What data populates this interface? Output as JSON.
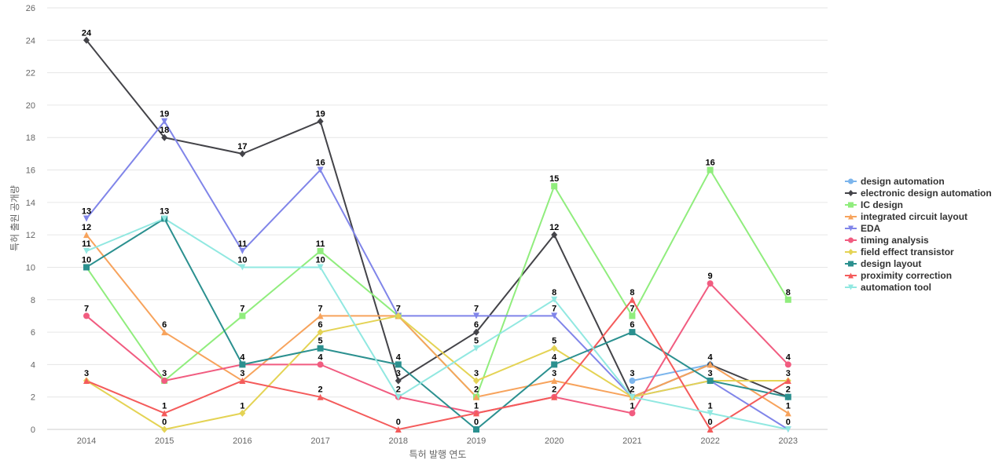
{
  "chart_data": {
    "type": "line",
    "title": "",
    "xlabel": "특허 발행 연도",
    "ylabel": "특허 출원 공개량",
    "x": [
      "2014",
      "2015",
      "2016",
      "2017",
      "2018",
      "2019",
      "2020",
      "2021",
      "2022",
      "2023"
    ],
    "ylim": [
      0,
      26
    ],
    "yticks": [
      0,
      2,
      4,
      6,
      8,
      10,
      12,
      14,
      16,
      18,
      20,
      22,
      24,
      26
    ],
    "grid": true,
    "legend_position": "right",
    "series": [
      {
        "name": "design automation",
        "color": "#7cb5ec",
        "marker": "circle",
        "values": [
          null,
          null,
          null,
          null,
          null,
          null,
          null,
          3,
          4,
          null
        ]
      },
      {
        "name": "electronic design automation",
        "color": "#434348",
        "marker": "diamond",
        "values": [
          24,
          18,
          17,
          19,
          3,
          6,
          12,
          2,
          4,
          2
        ]
      },
      {
        "name": "IC design",
        "color": "#90ed7d",
        "marker": "square",
        "values": [
          10,
          3,
          7,
          11,
          7,
          2,
          15,
          7,
          16,
          8
        ]
      },
      {
        "name": "integrated circuit layout",
        "color": "#f7a35c",
        "marker": "triangle",
        "values": [
          12,
          6,
          3,
          7,
          7,
          2,
          3,
          2,
          4,
          1
        ]
      },
      {
        "name": "EDA",
        "color": "#8085e9",
        "marker": "triangle-down",
        "values": [
          13,
          19,
          11,
          16,
          7,
          7,
          7,
          2,
          3,
          0
        ]
      },
      {
        "name": "timing analysis",
        "color": "#f15c80",
        "marker": "circle",
        "values": [
          7,
          3,
          4,
          4,
          2,
          1,
          2,
          1,
          9,
          4
        ]
      },
      {
        "name": "field effect transistor",
        "color": "#e4d354",
        "marker": "diamond",
        "values": [
          3,
          0,
          1,
          6,
          7,
          3,
          5,
          2,
          3,
          3
        ]
      },
      {
        "name": "design layout",
        "color": "#2b908f",
        "marker": "square",
        "values": [
          10,
          13,
          4,
          5,
          4,
          0,
          4,
          6,
          3,
          2
        ]
      },
      {
        "name": "proximity correction",
        "color": "#f45b5b",
        "marker": "triangle",
        "values": [
          3,
          1,
          3,
          2,
          0,
          1,
          2,
          8,
          0,
          3
        ]
      },
      {
        "name": "automation tool",
        "color": "#91e8e1",
        "marker": "triangle-down",
        "values": [
          11,
          13,
          10,
          10,
          2,
          5,
          8,
          2,
          1,
          0
        ]
      }
    ],
    "data_labels": [
      {
        "x": "2014",
        "y": 24,
        "text": "24"
      },
      {
        "x": "2014",
        "y": 13,
        "text": "13"
      },
      {
        "x": "2014",
        "y": 12,
        "text": "12"
      },
      {
        "x": "2014",
        "y": 11,
        "text": "11"
      },
      {
        "x": "2014",
        "y": 10,
        "text": "10"
      },
      {
        "x": "2014",
        "y": 7,
        "text": "7"
      },
      {
        "x": "2014",
        "y": 3,
        "text": "3"
      },
      {
        "x": "2015",
        "y": 19,
        "text": "19"
      },
      {
        "x": "2015",
        "y": 18,
        "text": "18"
      },
      {
        "x": "2015",
        "y": 13,
        "text": "13"
      },
      {
        "x": "2015",
        "y": 6,
        "text": "6"
      },
      {
        "x": "2015",
        "y": 3,
        "text": "3"
      },
      {
        "x": "2015",
        "y": 1,
        "text": "1"
      },
      {
        "x": "2015",
        "y": 0,
        "text": "0"
      },
      {
        "x": "2016",
        "y": 17,
        "text": "17"
      },
      {
        "x": "2016",
        "y": 11,
        "text": "11"
      },
      {
        "x": "2016",
        "y": 10,
        "text": "10"
      },
      {
        "x": "2016",
        "y": 7,
        "text": "7"
      },
      {
        "x": "2016",
        "y": 4,
        "text": "4"
      },
      {
        "x": "2016",
        "y": 3,
        "text": "3"
      },
      {
        "x": "2016",
        "y": 1,
        "text": "1"
      },
      {
        "x": "2017",
        "y": 19,
        "text": "19"
      },
      {
        "x": "2017",
        "y": 16,
        "text": "16"
      },
      {
        "x": "2017",
        "y": 11,
        "text": "11"
      },
      {
        "x": "2017",
        "y": 10,
        "text": "10"
      },
      {
        "x": "2017",
        "y": 7,
        "text": "7"
      },
      {
        "x": "2017",
        "y": 6,
        "text": "6"
      },
      {
        "x": "2017",
        "y": 5,
        "text": "5"
      },
      {
        "x": "2017",
        "y": 4,
        "text": "4"
      },
      {
        "x": "2017",
        "y": 2,
        "text": "2"
      },
      {
        "x": "2018",
        "y": 7,
        "text": "7"
      },
      {
        "x": "2018",
        "y": 4,
        "text": "4"
      },
      {
        "x": "2018",
        "y": 3,
        "text": "3"
      },
      {
        "x": "2018",
        "y": 2,
        "text": "2"
      },
      {
        "x": "2018",
        "y": 0,
        "text": "0"
      },
      {
        "x": "2019",
        "y": 7,
        "text": "7"
      },
      {
        "x": "2019",
        "y": 6,
        "text": "6"
      },
      {
        "x": "2019",
        "y": 5,
        "text": "5"
      },
      {
        "x": "2019",
        "y": 3,
        "text": "3"
      },
      {
        "x": "2019",
        "y": 2,
        "text": "2"
      },
      {
        "x": "2019",
        "y": 1,
        "text": "1"
      },
      {
        "x": "2019",
        "y": 0,
        "text": "0"
      },
      {
        "x": "2020",
        "y": 15,
        "text": "15"
      },
      {
        "x": "2020",
        "y": 12,
        "text": "12"
      },
      {
        "x": "2020",
        "y": 8,
        "text": "8"
      },
      {
        "x": "2020",
        "y": 7,
        "text": "7"
      },
      {
        "x": "2020",
        "y": 5,
        "text": "5"
      },
      {
        "x": "2020",
        "y": 4,
        "text": "4"
      },
      {
        "x": "2020",
        "y": 3,
        "text": "3"
      },
      {
        "x": "2020",
        "y": 2,
        "text": "2"
      },
      {
        "x": "2021",
        "y": 8,
        "text": "8"
      },
      {
        "x": "2021",
        "y": 7,
        "text": "7"
      },
      {
        "x": "2021",
        "y": 6,
        "text": "6"
      },
      {
        "x": "2021",
        "y": 3,
        "text": "3"
      },
      {
        "x": "2021",
        "y": 2,
        "text": "2"
      },
      {
        "x": "2021",
        "y": 1,
        "text": "1"
      },
      {
        "x": "2022",
        "y": 16,
        "text": "16"
      },
      {
        "x": "2022",
        "y": 9,
        "text": "9"
      },
      {
        "x": "2022",
        "y": 4,
        "text": "4"
      },
      {
        "x": "2022",
        "y": 3,
        "text": "3"
      },
      {
        "x": "2022",
        "y": 1,
        "text": "1"
      },
      {
        "x": "2022",
        "y": 0,
        "text": "0"
      },
      {
        "x": "2023",
        "y": 8,
        "text": "8"
      },
      {
        "x": "2023",
        "y": 4,
        "text": "4"
      },
      {
        "x": "2023",
        "y": 3,
        "text": "3"
      },
      {
        "x": "2023",
        "y": 2,
        "text": "2"
      },
      {
        "x": "2023",
        "y": 1,
        "text": "1"
      },
      {
        "x": "2023",
        "y": 0,
        "text": "0"
      }
    ]
  }
}
